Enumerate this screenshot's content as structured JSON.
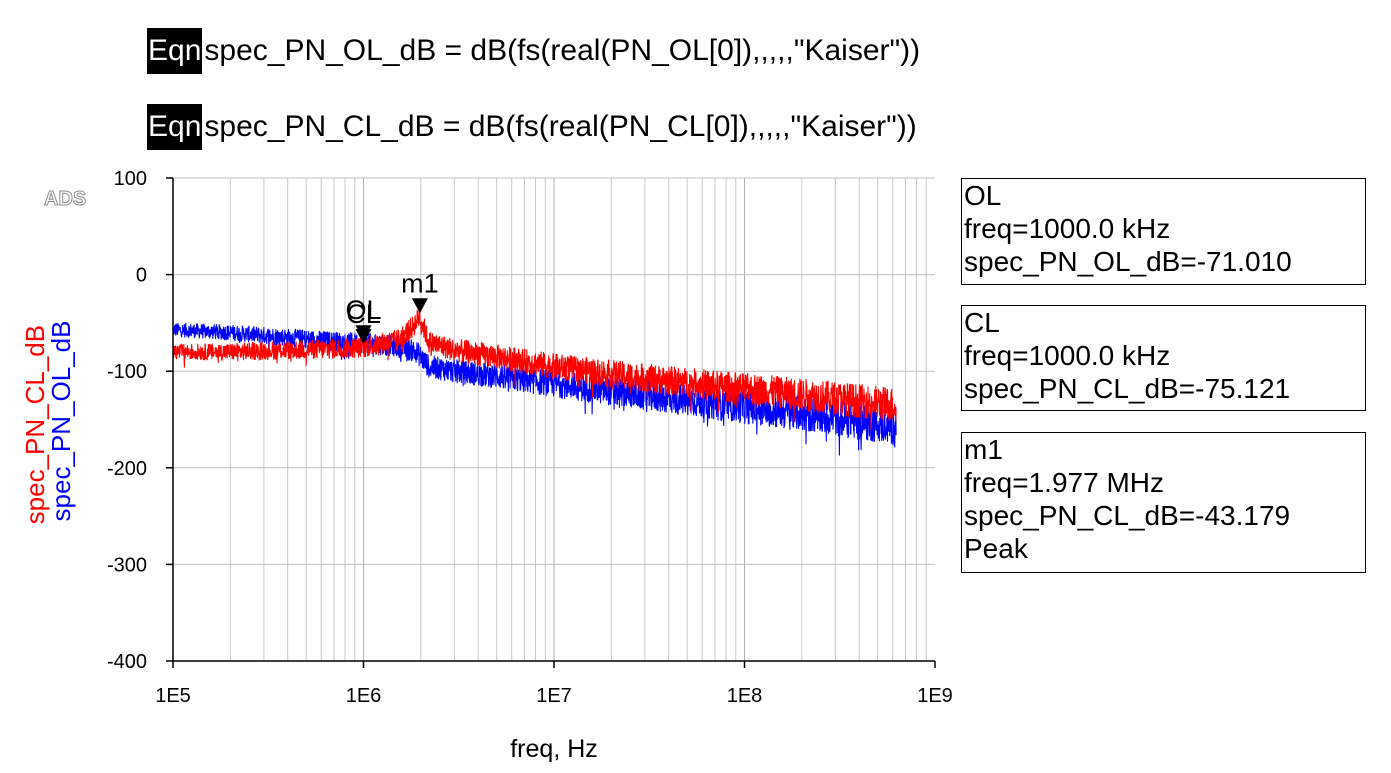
{
  "equations": [
    {
      "tag": "Eqn",
      "text": "spec_PN_OL_dB = dB(fs(real(PN_OL[0]),,,,,\"Kaiser\"))"
    },
    {
      "tag": "Eqn",
      "text": "spec_PN_CL_dB = dB(fs(real(PN_CL[0]),,,,,\"Kaiser\"))"
    }
  ],
  "watermark": "ADS",
  "chart_data": {
    "type": "line",
    "xlabel": "freq, Hz",
    "xscale": "log",
    "xlim": [
      100000,
      1000000000
    ],
    "ylim": [
      -400,
      100
    ],
    "xticks": [
      "1E5",
      "1E6",
      "1E7",
      "1E8",
      "1E9"
    ],
    "yticks": [
      "100",
      "0",
      "-100",
      "-200",
      "-300",
      "-400"
    ],
    "ylabels": [
      {
        "text": "spec_PN_CL_dB",
        "color": "#ff0000"
      },
      {
        "text": "spec_PN_OL_dB",
        "color": "#0000ff"
      }
    ],
    "grid": true,
    "series": [
      {
        "name": "spec_PN_OL_dB",
        "color": "#0000ff",
        "x": [
          100000,
          200000,
          400000,
          700000,
          1000000,
          1500000,
          1900000,
          2200000,
          3000000,
          5000000,
          10000000,
          30000000,
          100000000,
          300000000,
          625000000
        ],
        "y": [
          -57,
          -60,
          -65,
          -69,
          -71,
          -74,
          -80,
          -95,
          -100,
          -105,
          -113,
          -125,
          -137,
          -148,
          -157
        ]
      },
      {
        "name": "spec_PN_CL_dB",
        "color": "#ff0000",
        "x": [
          100000,
          200000,
          400000,
          700000,
          1000000,
          1500000,
          1800000,
          1977000,
          2200000,
          3000000,
          5000000,
          10000000,
          30000000,
          100000000,
          300000000,
          625000000
        ],
        "y": [
          -80,
          -80,
          -78,
          -77,
          -75,
          -68,
          -55,
          -43,
          -70,
          -78,
          -85,
          -95,
          -107,
          -118,
          -128,
          -135
        ]
      }
    ],
    "markers": [
      {
        "label": "OL",
        "freq": 1000000,
        "value": -71.01
      },
      {
        "label": "CL",
        "freq": 1000000,
        "value": -75.121
      },
      {
        "label": "m1",
        "freq": 1977000,
        "value": -43.179
      }
    ]
  },
  "marker_boxes": {
    "ol": {
      "name": "OL",
      "freq": "freq=1000.0 kHz",
      "value": "spec_PN_OL_dB=-71.010"
    },
    "cl": {
      "name": "CL",
      "freq": "freq=1000.0 kHz",
      "value": "spec_PN_CL_dB=-75.121"
    },
    "m1": {
      "name": "m1",
      "freq": "freq=1.977 MHz",
      "value": "spec_PN_CL_dB=-43.179",
      "note": "Peak"
    }
  }
}
